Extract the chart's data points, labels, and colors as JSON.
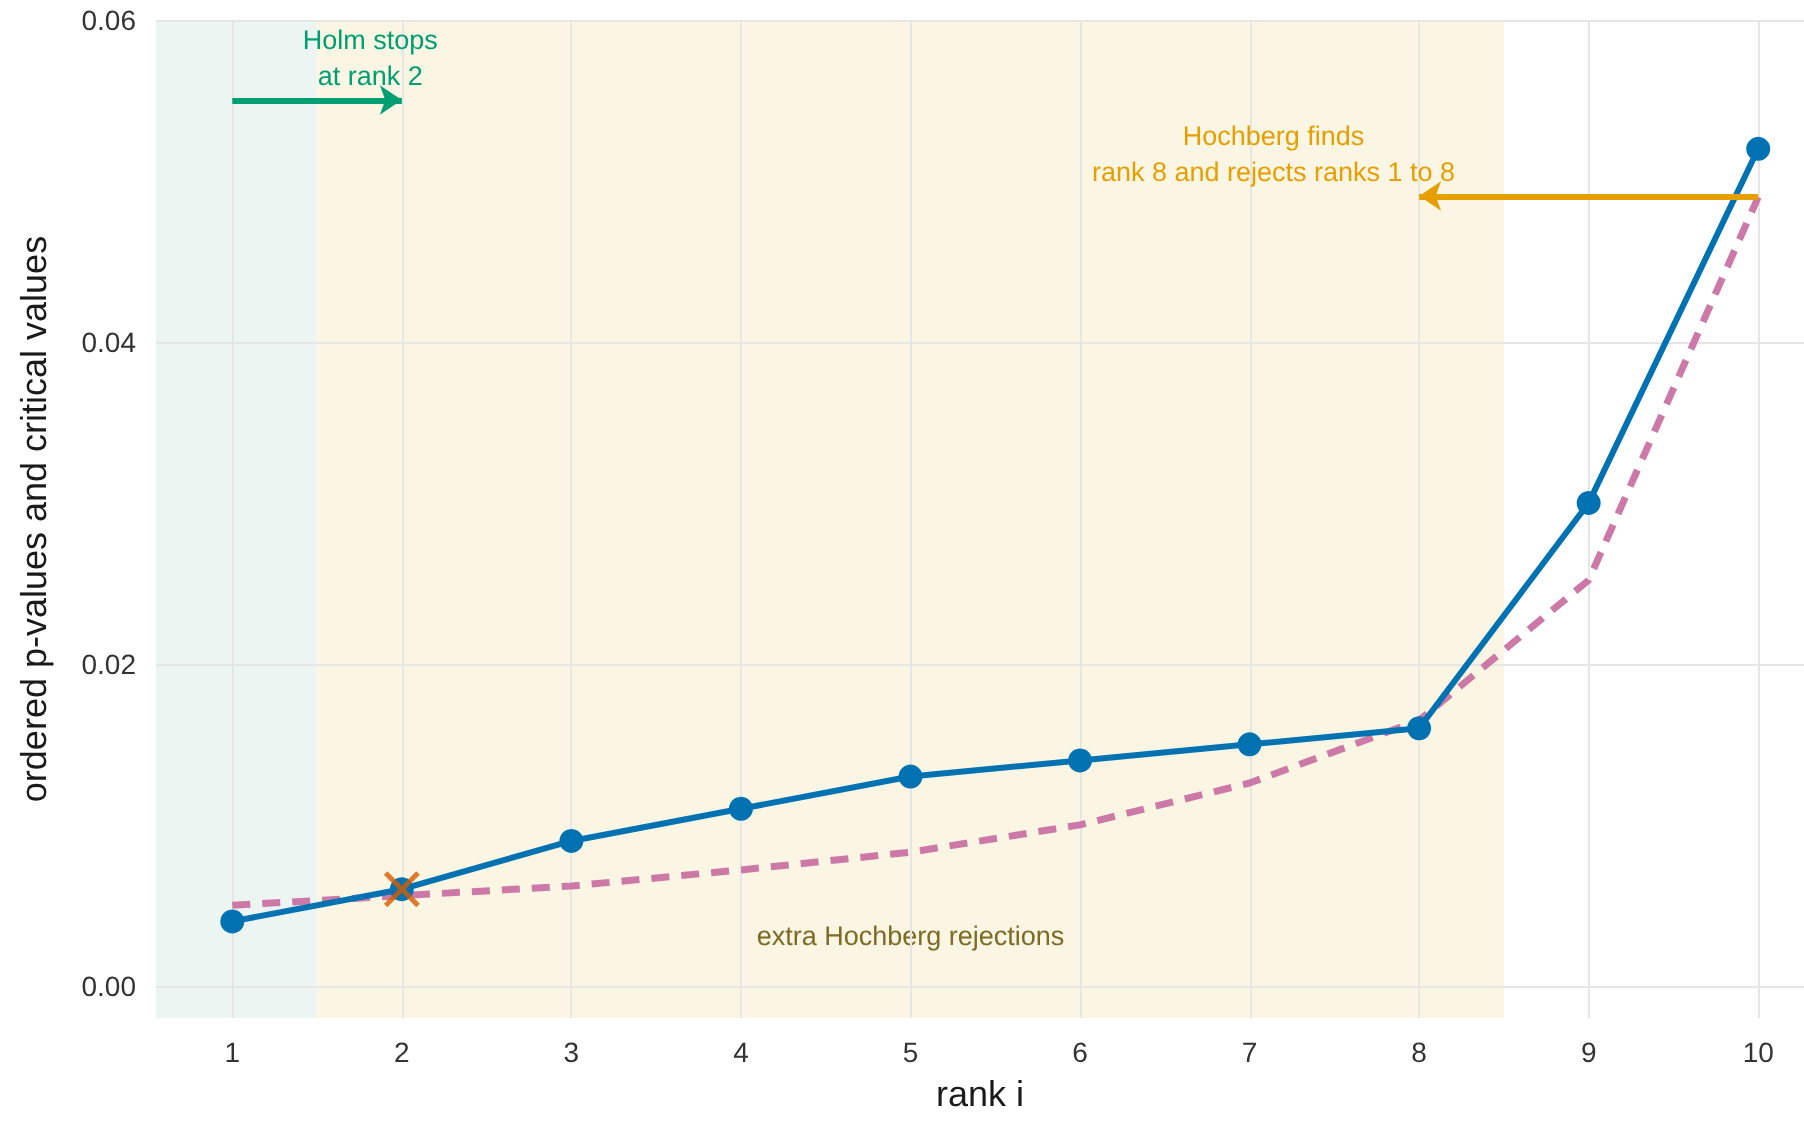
{
  "chart_data": {
    "type": "line",
    "xlabel": "rank i",
    "ylabel": "ordered p-values and critical values",
    "x": [
      1,
      2,
      3,
      4,
      5,
      6,
      7,
      8,
      9,
      10
    ],
    "series": [
      {
        "type": "line",
        "color": "#cc79a7",
        "values": [
          0.005,
          0.0056,
          0.0062,
          0.0072,
          0.0083,
          0.01,
          0.0126,
          0.0165,
          0.0252,
          0.049
        ],
        "marker": "none",
        "line_style": "dashed"
      },
      {
        "type": "line",
        "color": "#0072b2",
        "values": [
          0.004,
          0.006,
          0.009,
          0.011,
          0.013,
          0.014,
          0.015,
          0.016,
          0.03,
          0.052
        ],
        "marker": "circle",
        "line_style": "solid"
      },
      {
        "type": "scatter",
        "x": [
          2
        ],
        "values": [
          0.006
        ],
        "color": "#d55e00",
        "marker": "cross"
      }
    ],
    "xlim": [
      0.55,
      10.27
    ],
    "xticks": [
      1,
      2,
      3,
      4,
      5,
      6,
      7,
      8,
      9,
      10
    ],
    "ylim": [
      -0.002,
      0.06
    ],
    "yticks": [
      {
        "value": 0,
        "label": "0.00"
      },
      0.02,
      0.04,
      0.06
    ],
    "grid": true,
    "bands": [
      {
        "axis": "x",
        "from": 0.55,
        "to": 1.5,
        "color": "#ecf5f1"
      },
      {
        "axis": "x",
        "from": 1.5,
        "to": 8.5,
        "color": "#fbf5e4",
        "label": "extra Hochberg rejections"
      }
    ],
    "annotations": [
      "Holm stops\nat rank 2",
      "Hochberg finds\nrank 8 and rejects ranks 1 to 8"
    ]
  }
}
